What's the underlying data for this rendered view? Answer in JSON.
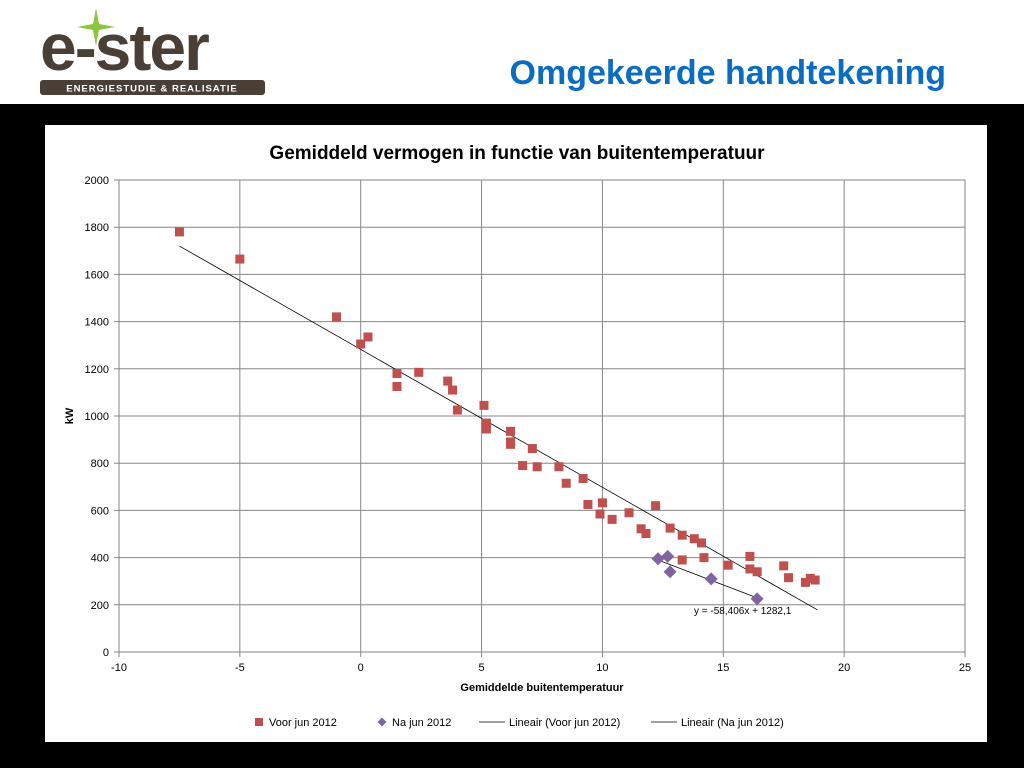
{
  "header": {
    "logo_text": "e-ster",
    "logo_tagline": "ENERGIESTUDIE & REALISATIE",
    "slide_title": "Omgekeerde handtekening"
  },
  "colors": {
    "title_blue": "#0a6dc2",
    "series_before": "#c0504d",
    "series_after": "#8064a2",
    "trend": "#000000",
    "logo_brown": "#4a3f37",
    "logo_green": "#8cc63f"
  },
  "chart_data": {
    "type": "scatter",
    "title": "Gemiddeld vermogen in functie van buitentemperatuur",
    "xlabel": "Gemiddelde buitentemperatuur",
    "ylabel": "kW",
    "xlim": [
      -10,
      25
    ],
    "ylim": [
      0,
      2000
    ],
    "xticks": [
      "-10",
      "-5",
      "0",
      "5",
      "10",
      "15",
      "20",
      "25"
    ],
    "yticks": [
      "0",
      "200",
      "400",
      "600",
      "800",
      "1000",
      "1200",
      "1400",
      "1600",
      "1800",
      "2000"
    ],
    "grid": true,
    "legend_position": "bottom",
    "series": [
      {
        "name": "Voor jun 2012",
        "marker": "square",
        "color": "#c0504d",
        "points": [
          [
            -7.5,
            1780
          ],
          [
            -5.0,
            1665
          ],
          [
            -1.0,
            1420
          ],
          [
            0.0,
            1305
          ],
          [
            0.3,
            1335
          ],
          [
            1.5,
            1180
          ],
          [
            1.5,
            1125
          ],
          [
            2.4,
            1185
          ],
          [
            3.6,
            1148
          ],
          [
            3.8,
            1110
          ],
          [
            4.0,
            1025
          ],
          [
            5.1,
            1045
          ],
          [
            5.2,
            970
          ],
          [
            5.2,
            945
          ],
          [
            6.2,
            935
          ],
          [
            6.2,
            890
          ],
          [
            6.2,
            880
          ],
          [
            6.7,
            790
          ],
          [
            7.1,
            862
          ],
          [
            7.3,
            785
          ],
          [
            8.2,
            785
          ],
          [
            8.5,
            715
          ],
          [
            9.2,
            735
          ],
          [
            9.4,
            625
          ],
          [
            9.9,
            585
          ],
          [
            10.0,
            632
          ],
          [
            10.4,
            562
          ],
          [
            11.1,
            590
          ],
          [
            11.6,
            522
          ],
          [
            11.8,
            502
          ],
          [
            12.2,
            620
          ],
          [
            12.8,
            525
          ],
          [
            13.3,
            495
          ],
          [
            13.3,
            390
          ],
          [
            13.8,
            480
          ],
          [
            14.1,
            462
          ],
          [
            14.2,
            400
          ],
          [
            15.2,
            368
          ],
          [
            16.1,
            405
          ],
          [
            16.1,
            352
          ],
          [
            16.4,
            340
          ],
          [
            17.5,
            365
          ],
          [
            17.7,
            315
          ],
          [
            18.4,
            295
          ],
          [
            18.6,
            312
          ],
          [
            18.8,
            305
          ]
        ]
      },
      {
        "name": "Na jun 2012",
        "marker": "diamond",
        "color": "#8064a2",
        "points": [
          [
            12.3,
            395
          ],
          [
            12.7,
            405
          ],
          [
            12.8,
            340
          ],
          [
            14.5,
            310
          ],
          [
            16.4,
            225
          ]
        ]
      }
    ],
    "trendlines": [
      {
        "name": "Lineair (Voor jun 2012)",
        "x_range": [
          -7.5,
          18.9
        ],
        "slope": -58.406,
        "intercept": 1282.1,
        "equation_label": "y = -58,406x + 1282,1"
      },
      {
        "name": "Lineair (Na jun 2012)",
        "x_range": [
          12.3,
          16.4
        ],
        "slope": -39.2,
        "intercept": 872,
        "equation_label": ""
      }
    ]
  }
}
